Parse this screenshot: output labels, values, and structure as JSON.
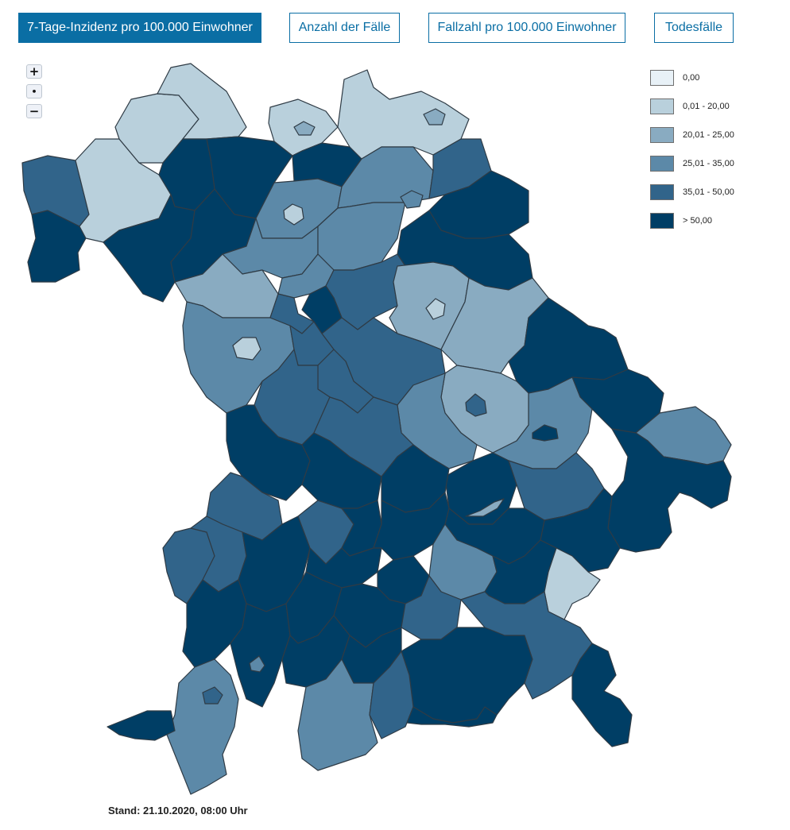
{
  "tabs": [
    {
      "label": "7-Tage-Inzidenz pro 100.000 Einwohner",
      "active": true
    },
    {
      "label": "Anzahl der Fälle",
      "active": false
    },
    {
      "label": "Fallzahl pro 100.000 Einwohner",
      "active": false
    },
    {
      "label": "Todesfälle",
      "active": false
    }
  ],
  "zoom": {
    "in": "+",
    "reset": "•",
    "out": "−"
  },
  "legend": [
    {
      "label": "0,00",
      "color": "#e8f1f7"
    },
    {
      "label": "0,01 - 20,00",
      "color": "#b9d0dc"
    },
    {
      "label": "20,01 - 25,00",
      "color": "#89abc1"
    },
    {
      "label": "25,01 - 35,00",
      "color": "#5c89a8"
    },
    {
      "label": "35,01 - 50,00",
      "color": "#31648a"
    },
    {
      "label": "> 50,00",
      "color": "#003e65"
    }
  ],
  "stand": "Stand: 21.10.2020, 08:00 Uhr"
}
